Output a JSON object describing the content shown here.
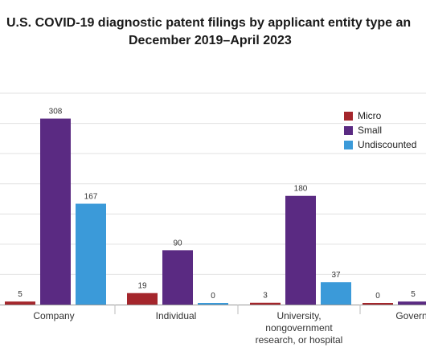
{
  "chart_data": {
    "type": "bar",
    "title_line1": "U.S. COVID-19 diagnostic patent filings by applicant entity type an",
    "title_line2": "December 2019–April 2023",
    "categories": [
      "Company",
      "Individual",
      "University, nongovernment research, or hospital",
      "Govern"
    ],
    "category_label_lines": [
      [
        "Company"
      ],
      [
        "Individual"
      ],
      [
        "University,",
        "nongovernment",
        "research, or hospital"
      ],
      [
        "Govern"
      ]
    ],
    "series": [
      {
        "name": "Micro",
        "color": "#a4262c",
        "values": [
          5,
          19,
          3,
          0
        ]
      },
      {
        "name": "Small",
        "color": "#5a2a82",
        "values": [
          308,
          90,
          180,
          5
        ]
      },
      {
        "name": "Undiscounted",
        "color": "#3b9ad9",
        "values": [
          167,
          0,
          37,
          null
        ]
      }
    ],
    "value_labels": [
      [
        "5",
        "308",
        "167"
      ],
      [
        "19",
        "90",
        "0"
      ],
      [
        "3",
        "180",
        "37"
      ],
      [
        "0",
        "5",
        ""
      ]
    ],
    "ylim": [
      0,
      350
    ],
    "grid": true,
    "legend_position": "top-right"
  }
}
